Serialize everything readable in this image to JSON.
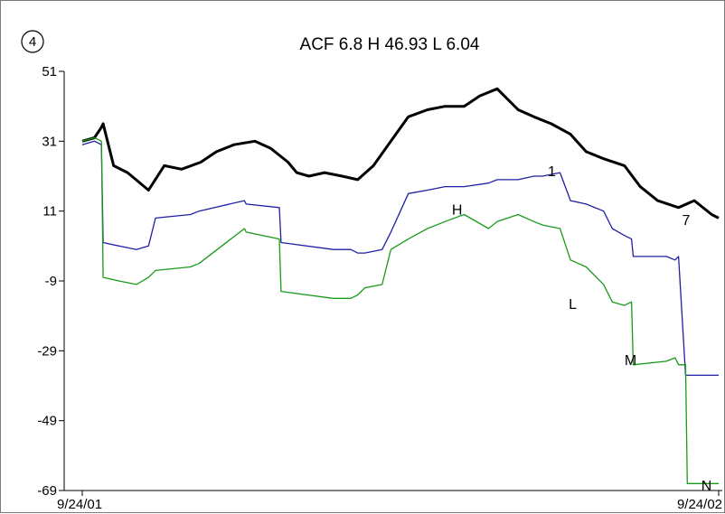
{
  "panel_number": "4",
  "chart_data": {
    "type": "line",
    "title": "ACF 6.8   H 46.93   L 6.04",
    "xlabel": "",
    "ylabel": "",
    "ylim": [
      -69,
      51
    ],
    "yticks": [
      "51",
      "31",
      "11",
      "-9",
      "-29",
      "-49",
      "-69"
    ],
    "xlim": [
      "2001-09-24",
      "2002-09-24"
    ],
    "xticks": [
      {
        "date": "2001-09-24",
        "label": "9/24/01"
      },
      {
        "date": "2002-09-24",
        "label": "9/24/02"
      }
    ],
    "grid": false,
    "legend": "none",
    "series": [
      {
        "color": "#000000",
        "x": [
          "2001-09-24",
          "2001-10-01",
          "2001-10-05",
          "2001-10-06",
          "2001-10-12",
          "2001-10-20",
          "2001-11-01",
          "2001-11-10",
          "2001-11-20",
          "2001-12-01",
          "2001-12-10",
          "2001-12-20",
          "2002-01-01",
          "2002-01-10",
          "2002-01-20",
          "2002-01-25",
          "2002-02-01",
          "2002-02-10",
          "2002-02-20",
          "2002-03-01",
          "2002-03-10",
          "2002-03-20",
          "2002-03-30",
          "2002-04-10",
          "2002-04-20",
          "2002-05-01",
          "2002-05-10",
          "2002-05-20",
          "2002-06-01",
          "2002-06-10",
          "2002-06-20",
          "2002-07-01",
          "2002-07-10",
          "2002-07-20",
          "2002-08-01",
          "2002-08-10",
          "2002-08-20",
          "2002-09-01",
          "2002-09-10",
          "2002-09-20",
          "2002-09-24"
        ],
        "values": [
          31,
          32,
          35,
          36,
          24,
          22,
          17,
          24,
          23,
          25,
          28,
          30,
          31,
          29,
          25,
          22,
          21,
          22,
          21,
          20,
          24,
          31,
          38,
          40,
          41,
          41,
          44,
          46,
          40,
          38,
          36,
          33,
          28,
          26,
          24,
          18,
          14,
          12,
          14,
          10,
          9
        ]
      },
      {
        "color": "#1f1fa5",
        "x": [
          "2001-09-24",
          "2001-10-01",
          "2001-10-05",
          "2001-10-06",
          "2001-10-15",
          "2001-10-25",
          "2001-11-01",
          "2001-11-05",
          "2001-11-25",
          "2001-11-30",
          "2001-12-26",
          "2001-12-27",
          "2002-01-15",
          "2002-01-16",
          "2002-02-15",
          "2002-02-25",
          "2002-03-01",
          "2002-03-05",
          "2002-03-15",
          "2002-03-20",
          "2002-03-30",
          "2002-04-10",
          "2002-04-20",
          "2002-05-01",
          "2002-05-15",
          "2002-05-20",
          "2002-06-01",
          "2002-06-10",
          "2002-06-15",
          "2002-06-25",
          "2002-07-01",
          "2002-07-10",
          "2002-07-20",
          "2002-07-25",
          "2002-08-01",
          "2002-08-05",
          "2002-08-06",
          "2002-08-25",
          "2002-08-30",
          "2002-09-01",
          "2002-09-05",
          "2002-09-06",
          "2002-09-24"
        ],
        "values": [
          30,
          31,
          30,
          2,
          1,
          0,
          1,
          9,
          10,
          11,
          14,
          13,
          12,
          2,
          0,
          0,
          -1,
          -1,
          0,
          5,
          16,
          17,
          18,
          18,
          19,
          20,
          20,
          21,
          21,
          22,
          14,
          13,
          11,
          6,
          4,
          3,
          -2,
          -2,
          -3,
          -2,
          -36,
          -36,
          -36
        ]
      },
      {
        "color": "#1a9a1a",
        "x": [
          "2001-09-24",
          "2001-10-01",
          "2001-10-05",
          "2001-10-06",
          "2001-10-15",
          "2001-10-25",
          "2001-11-01",
          "2001-11-05",
          "2001-11-25",
          "2001-11-30",
          "2001-12-26",
          "2001-12-27",
          "2002-01-15",
          "2002-01-16",
          "2002-02-15",
          "2002-02-25",
          "2002-03-01",
          "2002-03-05",
          "2002-03-15",
          "2002-03-20",
          "2002-03-30",
          "2002-04-10",
          "2002-04-20",
          "2002-05-01",
          "2002-05-15",
          "2002-05-20",
          "2002-06-01",
          "2002-06-10",
          "2002-06-15",
          "2002-06-25",
          "2002-07-01",
          "2002-07-10",
          "2002-07-20",
          "2002-07-25",
          "2002-08-01",
          "2002-08-05",
          "2002-08-06",
          "2002-08-25",
          "2002-08-30",
          "2002-09-01",
          "2002-09-05",
          "2002-09-06",
          "2002-09-24"
        ],
        "values": [
          31,
          32,
          31,
          -8,
          -9,
          -10,
          -8,
          -6,
          -5,
          -4,
          6,
          5,
          3,
          -12,
          -14,
          -14,
          -13,
          -11,
          -10,
          0,
          3,
          6,
          8,
          10,
          6,
          8,
          10,
          8,
          7,
          6,
          -3,
          -5,
          -10,
          -15,
          -16,
          -15,
          -33,
          -32,
          -31,
          -33,
          -33,
          -67,
          -67
        ]
      }
    ],
    "annotations": [
      {
        "text": "H",
        "x": "2002-04-24",
        "y": 10
      },
      {
        "text": "L",
        "x": "2002-06-30",
        "y": -17
      },
      {
        "text": "M",
        "x": "2002-08-01",
        "y": -33
      },
      {
        "text": "N",
        "x": "2002-09-14",
        "y": -69
      },
      {
        "text": "1",
        "x": "2002-06-18",
        "y": 21
      },
      {
        "text": "7",
        "x": "2002-09-03",
        "y": 7
      }
    ]
  }
}
